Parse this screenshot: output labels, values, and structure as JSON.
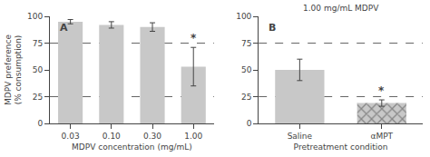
{
  "chart_data": [
    {
      "type": "bar",
      "title": "A",
      "categories": [
        "0.03",
        "0.10",
        "0.30",
        "1.00"
      ],
      "values": [
        95,
        92,
        90,
        53
      ],
      "errors": [
        2,
        3,
        4,
        18
      ],
      "color": "#c8c8c8",
      "xlabel": "MDPV concentration (mg/mL)",
      "ylabel": "MDPV preference\n(% consumption)",
      "ylim": [
        0,
        100
      ],
      "yticks": [
        0,
        25,
        50,
        75,
        100
      ],
      "reference_lines": {
        "values": [
          25,
          75
        ],
        "color": "#666666",
        "line_style": "dashed"
      },
      "annotations": [
        {
          "text": "*",
          "category": "1.00"
        }
      ],
      "grid": false,
      "legend": false
    },
    {
      "type": "bar",
      "title": "B",
      "subtitle": "1.00 mg/mL MDPV",
      "categories": [
        "Saline",
        "αMPT"
      ],
      "values": [
        50,
        19
      ],
      "errors": [
        10,
        3
      ],
      "color": "#c8c8c8",
      "xlabel": "Pretreatment condition",
      "ylim": [
        0,
        100
      ],
      "yticks": [
        0,
        25,
        50,
        75,
        100
      ],
      "reference_lines": {
        "values": [
          25,
          75
        ],
        "color": "#666666",
        "line_style": "dashed"
      },
      "annotations": [
        {
          "text": "*",
          "category": "αMPT"
        }
      ],
      "grid": false,
      "legend": false
    }
  ]
}
